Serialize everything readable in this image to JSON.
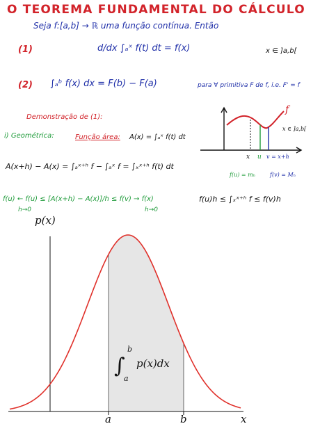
{
  "notes": {
    "title": "O TEOREMA FUNDAMENTAL DO CÁLCULO",
    "intro": "Seja f:[a,b] → ℝ uma função contínua. Então",
    "item1_num": "(1)",
    "item1_formula": "d/dx ∫ₐˣ f(t) dt = f(x)",
    "item1_domain": "x ∈ ]a,b[",
    "item2_num": "(2)",
    "item2_formula": "∫ₐᵇ f(x) dx = F(b) − F(a)",
    "item2_condition": "para ∀ primitiva F de f, i.e. F' = f",
    "proof_title": "Demonstração de (1):",
    "geometric_label": "i) Geométrica:",
    "area_function_label": "Função área:",
    "area_function_formula": "A(x) = ∫ₐˣ f(t) dt",
    "difference_formula": "A(x+h) − A(x) = ∫ₐˣ⁺ʰ f − ∫ₐˣ f = ∫ₓˣ⁺ʰ f(t) dt",
    "limit_formula": "f(u) ← f(u) ≤ [A(x+h) − A(x)]/h ≤ f(v) → f(x)",
    "limit_left_sub": "h→0",
    "limit_right_sub": "h→0",
    "bound_formula": "f(u)h ≤ ∫ₓˣ⁺ʰ f ≤ f(v)h",
    "mini_graph": {
      "f_label": "f",
      "domain_label": "x ∈ ]a,b[",
      "x_tick": "x",
      "u_tick": "u",
      "v_tick": "v = x+h",
      "min_label": "f(u) = mₕ",
      "max_label": "f(v) = Mₕ"
    }
  },
  "plot": {
    "y_axis_label": "p(x)",
    "x_axis_label": "x",
    "tick_a": "a",
    "tick_b": "b",
    "integral_lower": "a",
    "integral_upper": "b",
    "integrand": "p(x)dx",
    "curve_color": "#e0302a",
    "shade_color": "#e6e6e6"
  }
}
